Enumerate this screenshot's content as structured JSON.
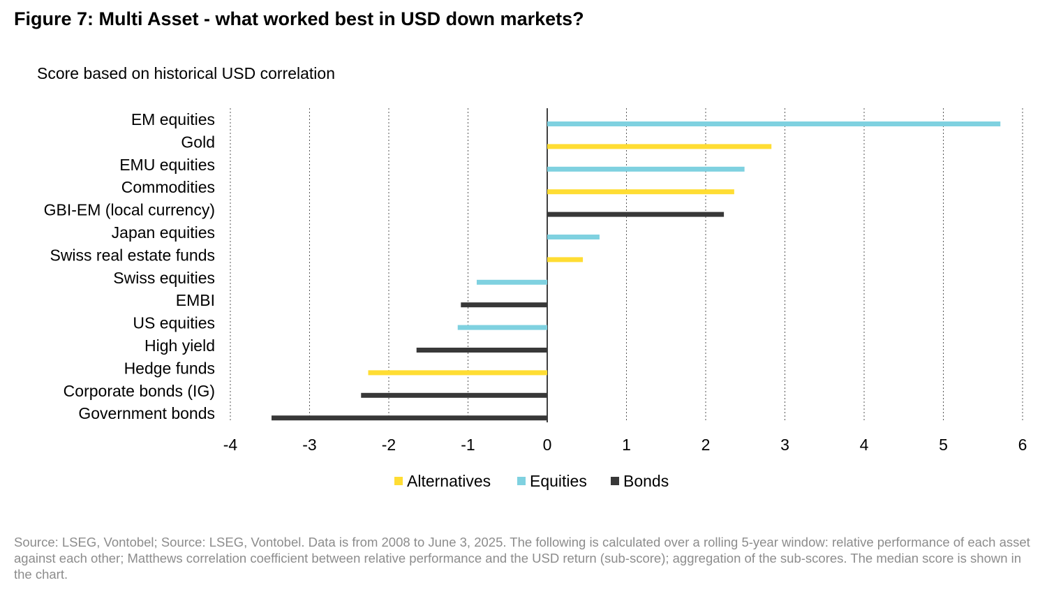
{
  "title": "Figure 7: Multi Asset - what worked best in USD down markets?",
  "source": "Source: LSEG, Vontobel; Source: LSEG, Vontobel. Data is from 2008 to June 3, 2025. The following is calculated over a rolling 5-year window: relative performance of each asset against each other; Matthews correlation coefficient between relative performance and the USD return (sub-score); aggregation of the sub-scores. The median score is shown in the chart.",
  "chart_data": {
    "type": "bar",
    "orientation": "horizontal",
    "subtitle": "Score based on historical USD correlation",
    "xlim": [
      -4,
      6
    ],
    "xticks": [
      "-4",
      "-3",
      "-2",
      "-1",
      "0",
      "1",
      "2",
      "3",
      "4",
      "5",
      "6"
    ],
    "grid": "vertical dotted",
    "legend_position": "bottom",
    "legend": [
      {
        "name": "Alternatives",
        "color": "#FFDD33"
      },
      {
        "name": "Equities",
        "color": "#7FD1E0"
      },
      {
        "name": "Bonds",
        "color": "#383838"
      }
    ],
    "bars": [
      {
        "label": "EM equities",
        "value": 5.72,
        "group": "Equities"
      },
      {
        "label": "Gold",
        "value": 2.83,
        "group": "Alternatives"
      },
      {
        "label": "EMU equities",
        "value": 2.49,
        "group": "Equities"
      },
      {
        "label": "Commodities",
        "value": 2.36,
        "group": "Alternatives"
      },
      {
        "label": "GBI-EM (local currency)",
        "value": 2.23,
        "group": "Bonds"
      },
      {
        "label": "Japan equities",
        "value": 0.66,
        "group": "Equities"
      },
      {
        "label": "Swiss real estate funds",
        "value": 0.45,
        "group": "Alternatives"
      },
      {
        "label": "Swiss equities",
        "value": -0.89,
        "group": "Equities"
      },
      {
        "label": "EMBI",
        "value": -1.09,
        "group": "Bonds"
      },
      {
        "label": "US equities",
        "value": -1.13,
        "group": "Equities"
      },
      {
        "label": "High yield",
        "value": -1.65,
        "group": "Bonds"
      },
      {
        "label": "Hedge funds",
        "value": -2.26,
        "group": "Alternatives"
      },
      {
        "label": "Corporate bonds (IG)",
        "value": -2.35,
        "group": "Bonds"
      },
      {
        "label": "Government bonds",
        "value": -3.48,
        "group": "Bonds"
      }
    ]
  }
}
